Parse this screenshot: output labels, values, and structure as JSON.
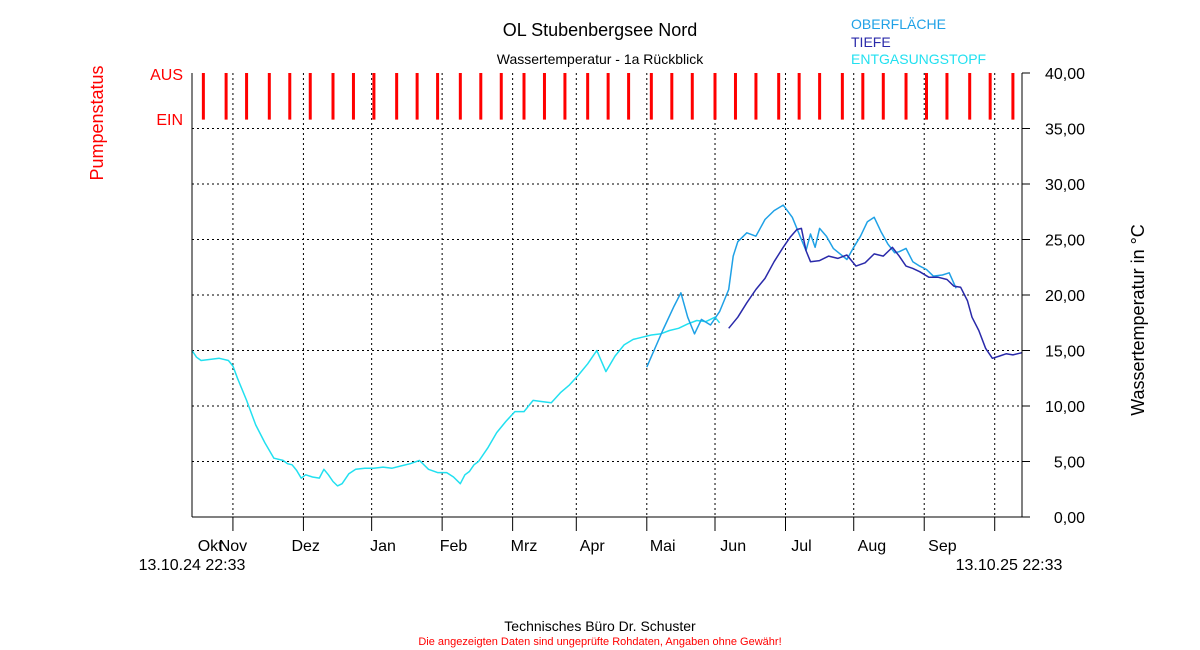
{
  "chart_data": {
    "type": "line",
    "title": "OL Stubenbergsee Nord",
    "subtitle": "Wassertemperatur - 1a Rückblick",
    "ylabel": "Wassertemperatur in °C",
    "ylabel_left": "Pumpenstatus",
    "ylim": [
      0,
      40
    ],
    "yticks": [
      "0,00",
      "5,00",
      "10,00",
      "15,00",
      "20,00",
      "25,00",
      "30,00",
      "35,00",
      "40,00"
    ],
    "x_range_days": [
      0,
      365
    ],
    "months": [
      {
        "label": "Okt",
        "day": 8
      },
      {
        "label": "Nov",
        "day": 18
      },
      {
        "label": "Dez",
        "day": 50
      },
      {
        "label": "Jan",
        "day": 84
      },
      {
        "label": "Feb",
        "day": 115
      },
      {
        "label": "Mrz",
        "day": 146
      },
      {
        "label": "Apr",
        "day": 176
      },
      {
        "label": "Mai",
        "day": 207
      },
      {
        "label": "Jun",
        "day": 238
      },
      {
        "label": "Jul",
        "day": 268
      },
      {
        "label": "Aug",
        "day": 299
      },
      {
        "label": "Sep",
        "day": 330
      }
    ],
    "month_boundaries": [
      18,
      49,
      79,
      110,
      141,
      169,
      200,
      230,
      261,
      291,
      322,
      353
    ],
    "start_label": "13.10.24 22:33",
    "end_label": "13.10.25 22:33",
    "pump_status": {
      "labels": {
        "on": "EIN",
        "off": "AUS"
      },
      "color": "#ff0000",
      "pulse_days": [
        5,
        15,
        24,
        34,
        43,
        52,
        62,
        71,
        80,
        90,
        99,
        108,
        118,
        127,
        136,
        146,
        155,
        164,
        174,
        183,
        192,
        202,
        211,
        220,
        230,
        239,
        248,
        258,
        267,
        276,
        286,
        295,
        304,
        314,
        323,
        332,
        342,
        351,
        361
      ]
    },
    "series": [
      {
        "name": "OBERFLÄCHE",
        "color": "#1fa1e6",
        "x": [
          200,
          207,
          212,
          215,
          218,
          221,
          224,
          228,
          232,
          236,
          238,
          240,
          244,
          248,
          252,
          256,
          260,
          264,
          268,
          270,
          272,
          274,
          276,
          279,
          282,
          285,
          288,
          291,
          294,
          297,
          300,
          303,
          306,
          309,
          311,
          314,
          317,
          320,
          323,
          326,
          330,
          333,
          336
        ],
        "y": [
          13.5,
          16.8,
          19.0,
          20.2,
          18.0,
          16.5,
          17.8,
          17.3,
          18.5,
          20.5,
          23.5,
          24.8,
          25.6,
          25.3,
          26.8,
          27.6,
          28.1,
          27.0,
          25.0,
          24.0,
          25.5,
          24.3,
          26.0,
          25.3,
          24.2,
          23.7,
          23.2,
          24.3,
          25.3,
          26.6,
          27.0,
          25.7,
          24.6,
          23.8,
          23.9,
          24.2,
          23.0,
          22.6,
          22.3,
          21.7,
          21.8,
          22.0,
          20.6
        ]
      },
      {
        "name": "TIEFE",
        "color": "#2a2aaa",
        "x": [
          236,
          240,
          244,
          248,
          252,
          256,
          260,
          263,
          266,
          268,
          270,
          272,
          276,
          280,
          284,
          288,
          292,
          296,
          300,
          304,
          308,
          311,
          314,
          317,
          320,
          324,
          328,
          332,
          335,
          338,
          341,
          343,
          346,
          349,
          352,
          355,
          358,
          361,
          365
        ],
        "y": [
          17.0,
          18.0,
          19.3,
          20.5,
          21.5,
          23.0,
          24.3,
          25.2,
          25.9,
          26.0,
          24.0,
          23.0,
          23.1,
          23.5,
          23.3,
          23.6,
          22.6,
          22.9,
          23.7,
          23.5,
          24.3,
          23.5,
          22.6,
          22.4,
          22.1,
          21.6,
          21.6,
          21.4,
          20.8,
          20.7,
          19.5,
          18.0,
          16.8,
          15.2,
          14.3,
          14.5,
          14.7,
          14.6,
          14.8
        ]
      },
      {
        "name": "ENTGASUNGSTOPF",
        "color": "#22e0f0",
        "x": [
          0,
          2,
          4,
          8,
          12,
          16,
          18,
          20,
          24,
          28,
          32,
          36,
          40,
          42,
          44,
          46,
          48,
          50,
          53,
          56,
          58,
          60,
          62,
          64,
          66,
          69,
          72,
          76,
          80,
          84,
          88,
          92,
          96,
          100,
          104,
          108,
          112,
          115,
          118,
          120,
          122,
          124,
          126,
          130,
          134,
          138,
          142,
          146,
          150,
          154,
          158,
          162,
          166,
          170,
          174,
          178,
          182,
          186,
          190,
          194,
          198,
          202,
          206,
          210,
          214,
          218,
          222,
          226,
          230,
          232
        ],
        "y": [
          15.0,
          14.4,
          14.1,
          14.2,
          14.3,
          14.1,
          13.6,
          12.5,
          10.5,
          8.3,
          6.7,
          5.3,
          5.1,
          4.8,
          4.7,
          4.2,
          3.5,
          3.8,
          3.6,
          3.5,
          4.3,
          3.8,
          3.2,
          2.8,
          3.0,
          3.9,
          4.3,
          4.4,
          4.4,
          4.5,
          4.4,
          4.6,
          4.8,
          5.1,
          4.3,
          4.0,
          4.0,
          3.6,
          3.0,
          3.8,
          4.1,
          4.7,
          5.0,
          6.2,
          7.6,
          8.6,
          9.5,
          9.5,
          10.5,
          10.4,
          10.3,
          11.2,
          11.9,
          12.8,
          13.8,
          15.0,
          13.1,
          14.5,
          15.5,
          16.0,
          16.2,
          16.4,
          16.5,
          16.8,
          17.0,
          17.4,
          17.7,
          17.6,
          18.0,
          17.5
        ]
      }
    ]
  },
  "footer": {
    "company": "Technisches Büro Dr. Schuster",
    "disclaimer": "Die angezeigten Daten sind ungeprüfte Rohdaten, Angaben ohne Gewähr!"
  }
}
